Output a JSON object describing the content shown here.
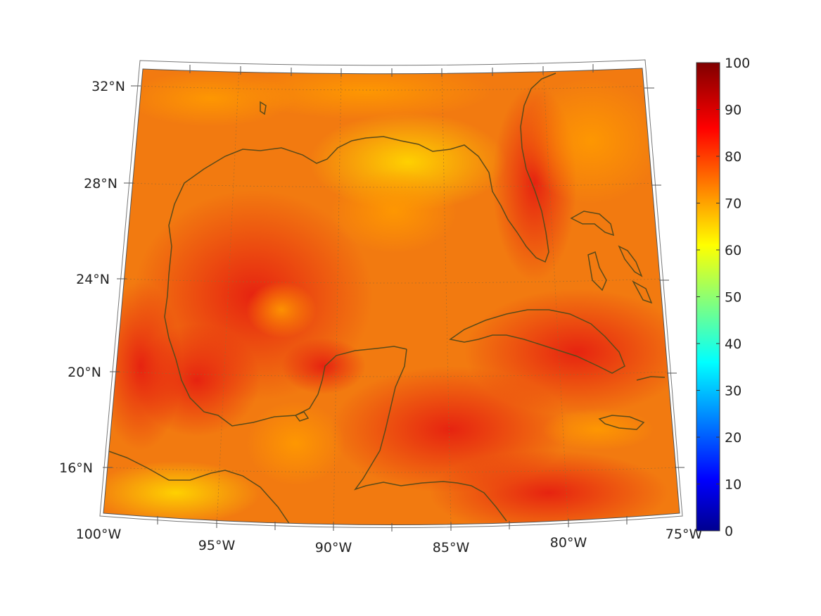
{
  "map": {
    "region": "Gulf of Mexico and Caribbean",
    "projection": "conic",
    "lon_range": [
      -100,
      -75
    ],
    "lat_range": [
      14,
      33
    ],
    "lat_labels": [
      {
        "lat": 32,
        "text": "32°N"
      },
      {
        "lat": 28,
        "text": "28°N"
      },
      {
        "lat": 24,
        "text": "24°N"
      },
      {
        "lat": 20,
        "text": "20°N"
      },
      {
        "lat": 16,
        "text": "16°N"
      }
    ],
    "lon_labels": [
      {
        "lon": -100,
        "text": "100°W"
      },
      {
        "lon": -95,
        "text": "95°W"
      },
      {
        "lon": -90,
        "text": "90°W"
      },
      {
        "lon": -85,
        "text": "85°W"
      },
      {
        "lon": -80,
        "text": "80°W"
      },
      {
        "lon": -75,
        "text": "75°W"
      }
    ],
    "colors": {
      "coast": "#5a4a1a",
      "grid": "#8a6a30",
      "field_base": "#f07010"
    }
  },
  "colorbar": {
    "min": 0,
    "max": 100,
    "colormap": "jet",
    "ticks": [
      "0",
      "10",
      "20",
      "30",
      "40",
      "50",
      "60",
      "70",
      "80",
      "90",
      "100"
    ]
  }
}
